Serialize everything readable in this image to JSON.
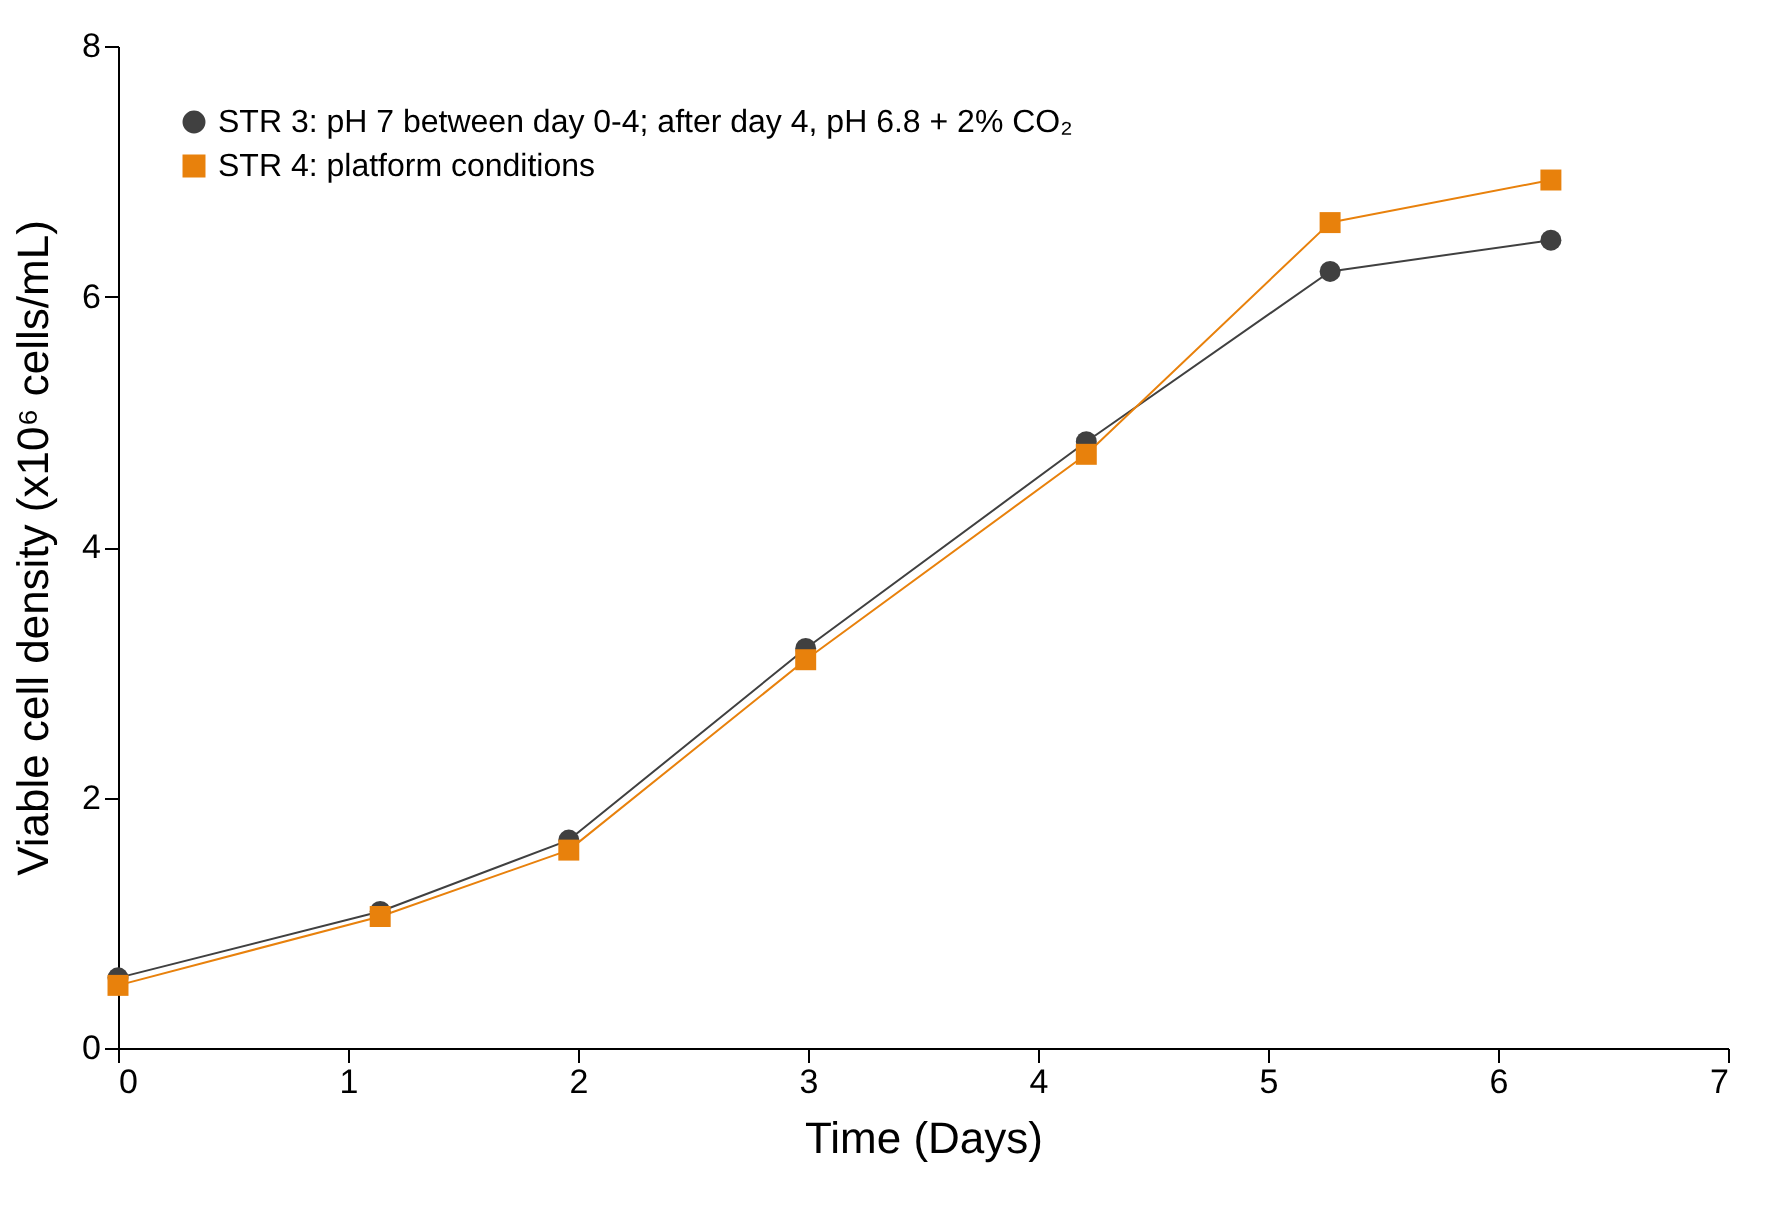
{
  "chart_data": {
    "type": "line",
    "xlabel": "Time (Days)",
    "ylabel": "Viable cell density (x10⁶ cells/mL)",
    "xlim": [
      0,
      7
    ],
    "xticks": [
      0,
      1,
      2,
      3,
      4,
      5,
      6,
      7
    ],
    "ylim": [
      0,
      8
    ],
    "yticks": [
      0,
      2,
      4,
      6,
      8
    ],
    "grid": false,
    "legend": "top left",
    "series": [
      {
        "name": "STR 3: pH 7 between day 0-4; after day 4, pH 6.8 + 2% CO₂",
        "color": "#404040",
        "marker": "circle",
        "x": [
          0,
          1.14,
          1.96,
          2.99,
          4.21,
          5.27,
          6.23
        ],
        "values": [
          0.56,
          1.09,
          1.66,
          3.19,
          4.84,
          6.2,
          6.45
        ]
      },
      {
        "name": "STR 4: platform conditions",
        "color": "#e8810c",
        "marker": "square",
        "x": [
          0,
          1.14,
          1.96,
          2.99,
          4.21,
          5.27,
          6.23
        ],
        "values": [
          0.5,
          1.05,
          1.58,
          3.1,
          4.74,
          6.59,
          6.93
        ]
      }
    ]
  }
}
